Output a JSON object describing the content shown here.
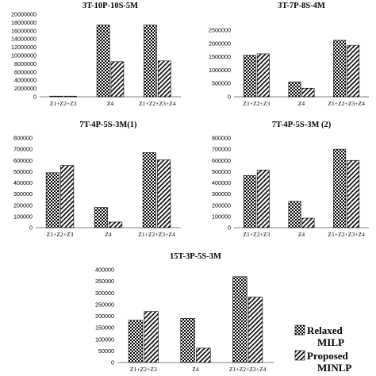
{
  "legend": [
    {
      "key": "relaxed",
      "lines": [
        "Relaxed",
        "MILP"
      ],
      "pattern": "checker"
    },
    {
      "key": "proposed",
      "lines": [
        "Proposed",
        "MINLP"
      ],
      "pattern": "hatch"
    }
  ],
  "chart_data": [
    {
      "type": "bar",
      "title": "3T-10P-10S-5M",
      "categories": [
        "Z1+Z2+Z3",
        "Z4",
        "Z1+Z2+Z3+Z4"
      ],
      "series": [
        {
          "name": "Relaxed MILP",
          "values": [
            60000,
            17400000,
            17400000
          ]
        },
        {
          "name": "Proposed MINLP",
          "values": [
            60000,
            8500000,
            8700000
          ]
        }
      ],
      "ylim": [
        0,
        20000000
      ],
      "yticks": [
        0,
        2000000,
        4000000,
        6000000,
        8000000,
        10000000,
        12000000,
        14000000,
        16000000,
        18000000,
        20000000
      ],
      "legend": "bottom-right"
    },
    {
      "type": "bar",
      "title": "3T-7P-8S-4M",
      "categories": [
        "Z1+Z2+Z3",
        "Z4",
        "Z1+Z2+Z3+Z4"
      ],
      "series": [
        {
          "name": "Relaxed MILP",
          "values": [
            1560000,
            560000,
            2120000
          ]
        },
        {
          "name": "Proposed MINLP",
          "values": [
            1610000,
            320000,
            1930000
          ]
        }
      ],
      "ylim": [
        0,
        2500000
      ],
      "yticks": [
        0,
        500000,
        1000000,
        1500000,
        2000000,
        2500000
      ]
    },
    {
      "type": "bar",
      "title": "7T-4P-5S-3M(1)",
      "categories": [
        "Z1+Z2+Z3",
        "Z4",
        "Z1+Z2+Z3+Z4"
      ],
      "series": [
        {
          "name": "Relaxed MILP",
          "values": [
            490000,
            180000,
            670000
          ]
        },
        {
          "name": "Proposed MINLP",
          "values": [
            555000,
            50000,
            605000
          ]
        }
      ],
      "ylim": [
        0,
        800000
      ],
      "yticks": [
        0,
        100000,
        200000,
        300000,
        400000,
        500000,
        600000,
        700000,
        800000
      ]
    },
    {
      "type": "bar",
      "title": "7T-4P-5S-3M (2)",
      "categories": [
        "Z1+Z2+Z3",
        "Z4",
        "Z1+Z2+Z3+Z4"
      ],
      "series": [
        {
          "name": "Relaxed MILP",
          "values": [
            465000,
            235000,
            700000
          ]
        },
        {
          "name": "Proposed MINLP",
          "values": [
            515000,
            85000,
            600000
          ]
        }
      ],
      "ylim": [
        0,
        800000
      ],
      "yticks": [
        0,
        100000,
        200000,
        300000,
        400000,
        500000,
        600000,
        700000,
        800000
      ]
    },
    {
      "type": "bar",
      "title": "15T-3P-5S-3M",
      "categories": [
        "Z1+Z2+Z3",
        "Z4",
        "Z1+Z2+Z3+Z4"
      ],
      "series": [
        {
          "name": "Relaxed MILP",
          "values": [
            182000,
            190000,
            370000
          ]
        },
        {
          "name": "Proposed MINLP",
          "values": [
            220000,
            62000,
            282000
          ]
        }
      ],
      "ylim": [
        0,
        400000
      ],
      "yticks": [
        0,
        50000,
        100000,
        150000,
        200000,
        250000,
        300000,
        350000,
        400000
      ]
    }
  ]
}
